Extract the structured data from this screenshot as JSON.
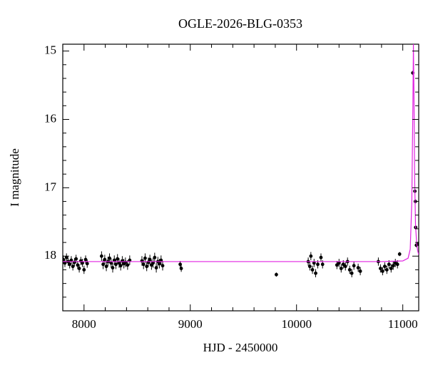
{
  "chart_data": {
    "type": "scatter",
    "title": "OGLE-2026-BLG-0353",
    "xlabel": "HJD - 2450000",
    "ylabel": "I magnitude",
    "xlim": [
      7800,
      11150
    ],
    "ylim": [
      14.9,
      18.8
    ],
    "y_inverted": true,
    "xticks": [
      8000,
      9000,
      10000,
      11000
    ],
    "yticks": [
      15,
      16,
      17,
      18
    ],
    "xminorticks": [
      7800,
      8200,
      8400,
      8600,
      8800,
      9200,
      9400,
      9600,
      9800,
      10200,
      10400,
      10600,
      10800
    ],
    "yminorticks": [
      15.2,
      15.4,
      15.6,
      15.8,
      16.2,
      16.4,
      16.6,
      16.8,
      17.2,
      17.4,
      17.6,
      17.8,
      18.2,
      18.4,
      18.6
    ],
    "series": [
      {
        "kind": "points",
        "color": "#000000",
        "x": [
          7805,
          7820,
          7835,
          7850,
          7865,
          7880,
          7895,
          7910,
          7925,
          7940,
          7955,
          7970,
          7985,
          8000,
          8015,
          8030,
          8165,
          8180,
          8195,
          8210,
          8225,
          8240,
          8255,
          8270,
          8285,
          8300,
          8315,
          8330,
          8345,
          8360,
          8375,
          8390,
          8410,
          8430,
          8545,
          8560,
          8575,
          8590,
          8605,
          8620,
          8635,
          8650,
          8665,
          8680,
          8695,
          8710,
          8725,
          8740,
          8905,
          8915,
          9810,
          10110,
          10125,
          10135,
          10150,
          10165,
          10180,
          10200,
          10230,
          10245,
          10380,
          10400,
          10420,
          10440,
          10460,
          10480,
          10500,
          10520,
          10540,
          10580,
          10600,
          10770,
          10790,
          10810,
          10830,
          10850,
          10870,
          10890,
          10910,
          10930,
          10950,
          10970,
          11094,
          11114,
          11118,
          11121,
          11128,
          11145
        ],
        "values": [
          18.05,
          18.1,
          18.02,
          18.08,
          18.12,
          18.06,
          18.15,
          18.09,
          18.04,
          18.13,
          18.18,
          18.07,
          18.1,
          18.2,
          18.05,
          18.11,
          18.0,
          18.12,
          18.05,
          18.15,
          18.08,
          18.03,
          18.1,
          18.17,
          18.06,
          18.12,
          18.04,
          18.1,
          18.14,
          18.07,
          18.11,
          18.09,
          18.13,
          18.06,
          18.07,
          18.12,
          18.03,
          18.15,
          18.09,
          18.05,
          18.13,
          18.1,
          18.02,
          18.17,
          18.08,
          18.11,
          18.06,
          18.14,
          18.12,
          18.18,
          18.27,
          18.08,
          18.15,
          18.0,
          18.2,
          18.1,
          18.25,
          18.12,
          18.02,
          18.12,
          18.13,
          18.1,
          18.18,
          18.12,
          18.15,
          18.08,
          18.2,
          18.25,
          18.14,
          18.17,
          18.22,
          18.08,
          18.18,
          18.22,
          18.15,
          18.2,
          18.12,
          18.18,
          18.14,
          18.1,
          18.12,
          17.97,
          15.32,
          17.05,
          17.2,
          17.58,
          17.84,
          17.82
        ],
        "errors": [
          0.06,
          0.06,
          0.06,
          0.06,
          0.06,
          0.06,
          0.06,
          0.06,
          0.06,
          0.06,
          0.06,
          0.06,
          0.06,
          0.06,
          0.06,
          0.06,
          0.07,
          0.07,
          0.07,
          0.07,
          0.07,
          0.07,
          0.07,
          0.07,
          0.07,
          0.07,
          0.07,
          0.07,
          0.07,
          0.07,
          0.07,
          0.07,
          0.07,
          0.07,
          0.07,
          0.07,
          0.07,
          0.07,
          0.07,
          0.07,
          0.07,
          0.07,
          0.07,
          0.07,
          0.07,
          0.07,
          0.07,
          0.07,
          0.05,
          0.05,
          0.03,
          0.06,
          0.06,
          0.06,
          0.06,
          0.06,
          0.06,
          0.06,
          0.06,
          0.06,
          0.06,
          0.06,
          0.06,
          0.06,
          0.06,
          0.06,
          0.06,
          0.06,
          0.06,
          0.06,
          0.06,
          0.06,
          0.06,
          0.06,
          0.06,
          0.06,
          0.06,
          0.06,
          0.06,
          0.06,
          0.06,
          0.03,
          0.03,
          0.03,
          0.03,
          0.03,
          0.03,
          0.03
        ]
      },
      {
        "kind": "line",
        "color": "#e020e0",
        "x": [
          7800,
          10800,
          11000,
          11050,
          11070,
          11085,
          11095,
          11100,
          11105,
          11112,
          11120,
          11130,
          11140,
          11150
        ],
        "values": [
          18.08,
          18.08,
          18.07,
          18.03,
          17.9,
          17.2,
          15.8,
          14.9,
          15.6,
          16.9,
          17.55,
          17.8,
          17.92,
          17.98
        ]
      }
    ]
  }
}
